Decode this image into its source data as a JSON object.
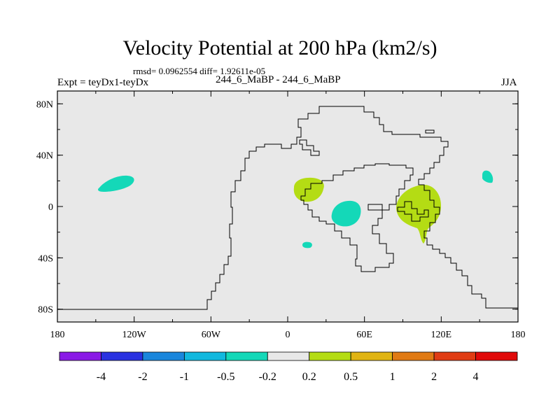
{
  "chart_data": {
    "type": "map-contour",
    "title": "Velocity Potential at 200 hPa (km2/s)",
    "stats_line": "rmsd= 0.0962554 diff= 1.92611e-05",
    "left_label": "Expt = teyDx1-teyDx",
    "center_label": "244_6_MaBP - 244_6_MaBP",
    "right_label": "JJA",
    "x_axis": {
      "range": [
        -180,
        180
      ],
      "ticks": [
        {
          "value": -180,
          "label": "180"
        },
        {
          "value": -120,
          "label": "120W"
        },
        {
          "value": -60,
          "label": "60W"
        },
        {
          "value": 0,
          "label": "0"
        },
        {
          "value": 60,
          "label": "60E"
        },
        {
          "value": 120,
          "label": "120E"
        },
        {
          "value": 180,
          "label": "180"
        }
      ]
    },
    "y_axis": {
      "range": [
        -90,
        90
      ],
      "ticks": [
        {
          "value": 80,
          "label": "80N"
        },
        {
          "value": 40,
          "label": "40N"
        },
        {
          "value": 0,
          "label": "0"
        },
        {
          "value": -40,
          "label": "40S"
        },
        {
          "value": -80,
          "label": "80S"
        }
      ]
    },
    "colorbar": {
      "colors": [
        "#8a1ae6",
        "#2a32e0",
        "#1a86dc",
        "#12b8de",
        "#14d8b8",
        "#e8e8e8",
        "#b4dc14",
        "#e0b414",
        "#e07a14",
        "#e03c14",
        "#e00a0a"
      ],
      "labels": [
        "-4",
        "-2",
        "-1",
        "-0.5",
        "-0.2",
        "0.2",
        "0.5",
        "1",
        "2",
        "4"
      ]
    },
    "background_color": "#e8e8e8",
    "regions": [
      {
        "name": "cyan-north-pacific",
        "level": "-0.5 to -0.2",
        "color": "#14d8b8",
        "center": [
          -130,
          18
        ]
      },
      {
        "name": "cyan-west-pacific",
        "level": "-0.5 to -0.2",
        "color": "#14d8b8",
        "center": [
          155,
          23
        ]
      },
      {
        "name": "cyan-east-africa",
        "level": "-0.5 to -0.2",
        "color": "#14d8b8",
        "center": [
          45,
          -5
        ]
      },
      {
        "name": "cyan-south-atlantic",
        "level": "-0.5 to -0.2",
        "color": "#14d8b8",
        "center": [
          15,
          -31
        ]
      },
      {
        "name": "green-west-africa",
        "level": "0.2 to 0.5",
        "color": "#b4dc14",
        "center": [
          16,
          13
        ]
      },
      {
        "name": "green-indonesia",
        "level": "0.2 to 0.5",
        "color": "#b4dc14",
        "center": [
          107,
          -2
        ]
      }
    ]
  }
}
